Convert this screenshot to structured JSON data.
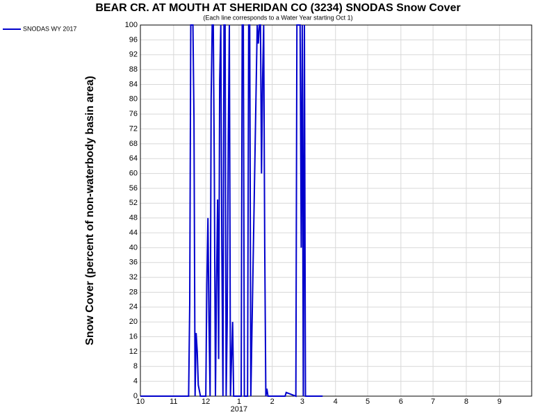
{
  "chart_data": {
    "type": "line",
    "title": "BEAR CR. AT MOUTH AT SHERIDAN CO (3234) SNODAS Snow Cover",
    "subtitle": "(Each line corresponds to a Water Year starting Oct 1)",
    "y_label": "Snow Cover (percent of non-waterbody basin area)",
    "x_year_label": "2017",
    "x": [
      0,
      45,
      46,
      47,
      49,
      50,
      51,
      52,
      53,
      54,
      56,
      61,
      62,
      63,
      64,
      65,
      66,
      67,
      68,
      69,
      70,
      71,
      72,
      73,
      74,
      75,
      76,
      77,
      78,
      79,
      80,
      81,
      82,
      83,
      84,
      85,
      86,
      87,
      94,
      95,
      96,
      97,
      100,
      101,
      102,
      103,
      109,
      110,
      111,
      112,
      113,
      114,
      115,
      116,
      117,
      118,
      119,
      125,
      135,
      136,
      145,
      146,
      149,
      150,
      151,
      152,
      153,
      154,
      170
    ],
    "series": [
      {
        "name": "SNODAS WY 2017",
        "color": "#0000cc",
        "values": [
          0,
          0,
          25,
          100,
          100,
          75,
          0,
          17,
          12,
          3,
          0,
          0,
          30,
          48,
          20,
          0,
          80,
          100,
          100,
          60,
          0,
          30,
          53,
          10,
          85,
          100,
          40,
          0,
          100,
          100,
          0,
          20,
          70,
          100,
          0,
          10,
          20,
          0,
          0,
          100,
          100,
          0,
          0,
          100,
          100,
          0,
          100,
          95,
          100,
          100,
          60,
          85,
          100,
          40,
          0,
          2,
          0,
          0,
          0,
          1,
          0,
          100,
          100,
          40,
          100,
          0,
          100,
          0,
          0
        ]
      }
    ],
    "xlim": [
      0,
      365
    ],
    "xticks": [
      {
        "value": 0,
        "label": "10"
      },
      {
        "value": 31,
        "label": "11"
      },
      {
        "value": 61,
        "label": "12"
      },
      {
        "value": 92,
        "label": "1"
      },
      {
        "value": 123,
        "label": "2"
      },
      {
        "value": 151,
        "label": "3"
      },
      {
        "value": 182,
        "label": "4"
      },
      {
        "value": 212,
        "label": "5"
      },
      {
        "value": 243,
        "label": "6"
      },
      {
        "value": 273,
        "label": "7"
      },
      {
        "value": 304,
        "label": "8"
      },
      {
        "value": 335,
        "label": "9"
      }
    ],
    "ylim": [
      0,
      100
    ],
    "yticks": [
      0,
      4,
      8,
      12,
      16,
      20,
      24,
      28,
      32,
      36,
      40,
      44,
      48,
      52,
      56,
      60,
      64,
      68,
      72,
      76,
      80,
      84,
      88,
      92,
      96,
      100
    ],
    "grid": true,
    "legend": "top-left"
  }
}
